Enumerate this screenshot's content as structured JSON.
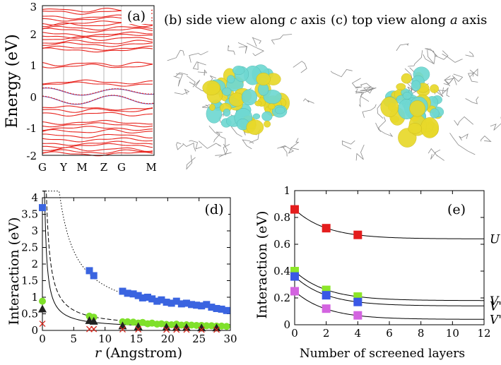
{
  "figure": {
    "panel_a": {
      "label": "(a)",
      "ylabel": "Energy (eV)",
      "yticks": [
        "3",
        "2",
        "1",
        "0",
        "-1",
        "-2"
      ],
      "xticks": [
        "G",
        "Y",
        "M",
        "Z",
        "G",
        "M"
      ]
    },
    "panel_b": {
      "title_prefix": "(b) side view along ",
      "title_axis": "c",
      "title_suffix": " axis"
    },
    "panel_c": {
      "title_prefix": "(c) top view along ",
      "title_axis": "a",
      "title_suffix": " axis"
    },
    "colors": {
      "band": "#e8231d",
      "fit": "#6a4fb0",
      "isosurface_pos": "#e8d92a",
      "isosurface_neg": "#6fd8d2",
      "square_blue": "#3a64e0",
      "circle_green": "#7fe02a",
      "tri": "#222222",
      "cross": "#d8281e",
      "red_sq": "#e41d1d",
      "green_sq": "#8ce628",
      "blue_sq": "#3a58e6",
      "magenta_sq": "#d364e0"
    }
  },
  "chart_data": [
    {
      "id": "d",
      "label": "(d)",
      "type": "scatter",
      "xlabel_italic": "r",
      "xlabel_rest": " (Angstrom)",
      "ylabel": "Interaction (eV)",
      "xlim": [
        0,
        30
      ],
      "ylim": [
        0,
        4
      ],
      "xticks": [
        "0",
        "5",
        "10",
        "15",
        "20",
        "25",
        "30"
      ],
      "yticks": [
        "0",
        "0.5",
        "1",
        "1.5",
        "2",
        "2.5",
        "3",
        "3.5",
        "4"
      ],
      "series": [
        {
          "name": "blue",
          "marker": "square",
          "x": [
            0,
            7.5,
            8.2,
            12.8,
            13.6,
            14.5,
            15.3,
            16.0,
            16.8,
            17.5,
            18.3,
            19.0,
            19.8,
            20.6,
            21.4,
            22.2,
            23.0,
            23.8,
            24.6,
            25.4,
            26.2,
            27.0,
            27.8,
            28.6,
            29.4
          ],
          "y": [
            3.7,
            1.8,
            1.65,
            1.18,
            1.12,
            1.1,
            1.05,
            0.98,
            1.0,
            0.95,
            0.88,
            0.92,
            0.85,
            0.82,
            0.88,
            0.8,
            0.82,
            0.78,
            0.76,
            0.74,
            0.78,
            0.7,
            0.66,
            0.64,
            0.6
          ]
        },
        {
          "name": "green",
          "marker": "circle",
          "x": [
            0,
            7.5,
            8.2,
            12.8,
            13.6,
            14.5,
            15.3,
            16.0,
            16.8,
            17.5,
            18.3,
            19.0,
            19.8,
            20.6,
            21.4,
            22.2,
            23.0,
            23.8,
            24.6,
            25.4,
            26.2,
            27.0,
            27.8,
            28.6,
            29.4
          ],
          "y": [
            0.88,
            0.43,
            0.4,
            0.26,
            0.26,
            0.25,
            0.22,
            0.24,
            0.2,
            0.22,
            0.19,
            0.2,
            0.18,
            0.17,
            0.19,
            0.16,
            0.17,
            0.16,
            0.15,
            0.15,
            0.14,
            0.14,
            0.13,
            0.13,
            0.12
          ]
        },
        {
          "name": "black",
          "marker": "triangle",
          "x": [
            0,
            7.5,
            8.2,
            12.8,
            15.3,
            19.8,
            21.4,
            23.0,
            25.4,
            27.8
          ],
          "y": [
            0.65,
            0.3,
            0.28,
            0.14,
            0.12,
            0.1,
            0.09,
            0.09,
            0.08,
            0.08
          ]
        },
        {
          "name": "red",
          "marker": "cross",
          "x": [
            0,
            7.5,
            8.2,
            12.8,
            15.3,
            19.8,
            21.4,
            23.0,
            25.4,
            27.8
          ],
          "y": [
            0.2,
            0.04,
            0.04,
            0.03,
            0.03,
            0.02,
            0.02,
            0.02,
            0.02,
            0.02
          ]
        }
      ],
      "fits": [
        {
          "name": "dotted",
          "style": "dotted",
          "A": 10.5,
          "B": 2.5,
          "C": 0.3
        },
        {
          "name": "dashed",
          "style": "dashed",
          "A": 2.6,
          "B": 2.0,
          "C": 0.09
        },
        {
          "name": "solid",
          "style": "solid",
          "A": 1.5,
          "B": 1.5,
          "C": 0.06
        },
        {
          "name": "flat",
          "style": "dotted",
          "A": 0,
          "B": 1,
          "C": 0.0
        }
      ]
    },
    {
      "id": "e",
      "label": "(e)",
      "type": "scatter",
      "xlabel": "Number of screened layers",
      "ylabel": "Interaction (eV)",
      "xlim": [
        0,
        12
      ],
      "ylim": [
        0,
        1
      ],
      "xticks": [
        "0",
        "2",
        "4",
        "6",
        "8",
        "10",
        "12"
      ],
      "yticks": [
        "0",
        "0.2",
        "0.4",
        "0.6",
        "0.8",
        "1"
      ],
      "series": [
        {
          "name": "U",
          "marker": "square",
          "x": [
            0,
            2,
            4
          ],
          "y": [
            0.86,
            0.72,
            0.67
          ],
          "asymptote": 0.64,
          "decay": 2.0,
          "curve_label": "U"
        },
        {
          "name": "V",
          "marker": "square",
          "x": [
            0,
            2,
            4
          ],
          "y": [
            0.4,
            0.26,
            0.21
          ],
          "asymptote": 0.18,
          "decay": 2.0,
          "curve_label": "V"
        },
        {
          "name": "V'",
          "marker": "square",
          "x": [
            0,
            2,
            4
          ],
          "y": [
            0.36,
            0.22,
            0.17
          ],
          "asymptote": 0.14,
          "decay": 2.0,
          "curve_label": "V'"
        },
        {
          "name": "V''",
          "marker": "square",
          "x": [
            0,
            2,
            4
          ],
          "y": [
            0.25,
            0.12,
            0.07
          ],
          "asymptote": 0.04,
          "decay": 2.0,
          "curve_label": "V''"
        }
      ]
    }
  ]
}
